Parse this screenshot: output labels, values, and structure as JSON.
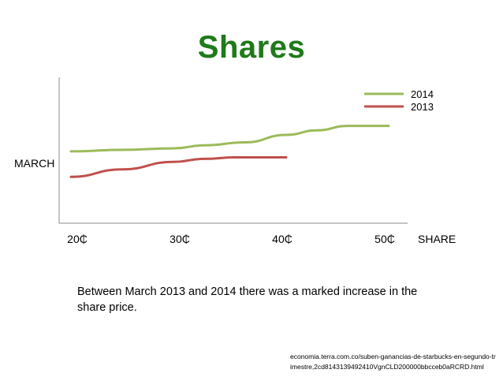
{
  "title": "Shares",
  "caption": "Between March 2013 and 2014 there was a marked increase in the share price.",
  "source": "economia.terra.com.co/suben-ganancias-de-starbucks-en-segundo-trimestre,2cd8143139492410VgnCLD200000bbcceb0aRCRD.html",
  "chart_data": {
    "type": "line",
    "xlabel": "SHARE",
    "ylabel": "MARCH",
    "x_ticks": [
      "20₵",
      "30₵",
      "40₵",
      "50₵"
    ],
    "x_tick_values": [
      20,
      30,
      40,
      50
    ],
    "xlim": [
      20,
      50
    ],
    "ylim": [
      0,
      1
    ],
    "grid": false,
    "legend_position": "top-right",
    "series": [
      {
        "name": "2014",
        "color": "#9bbb59",
        "x": [
          20,
          25,
          30,
          33,
          37,
          41,
          44,
          47,
          51
        ],
        "y": [
          0.49,
          0.5,
          0.51,
          0.53,
          0.55,
          0.6,
          0.63,
          0.66,
          0.66
        ]
      },
      {
        "name": "2013",
        "color": "#c0504d",
        "x": [
          20,
          25,
          30,
          33,
          36,
          41
        ],
        "y": [
          0.32,
          0.37,
          0.42,
          0.44,
          0.45,
          0.45
        ]
      }
    ]
  }
}
